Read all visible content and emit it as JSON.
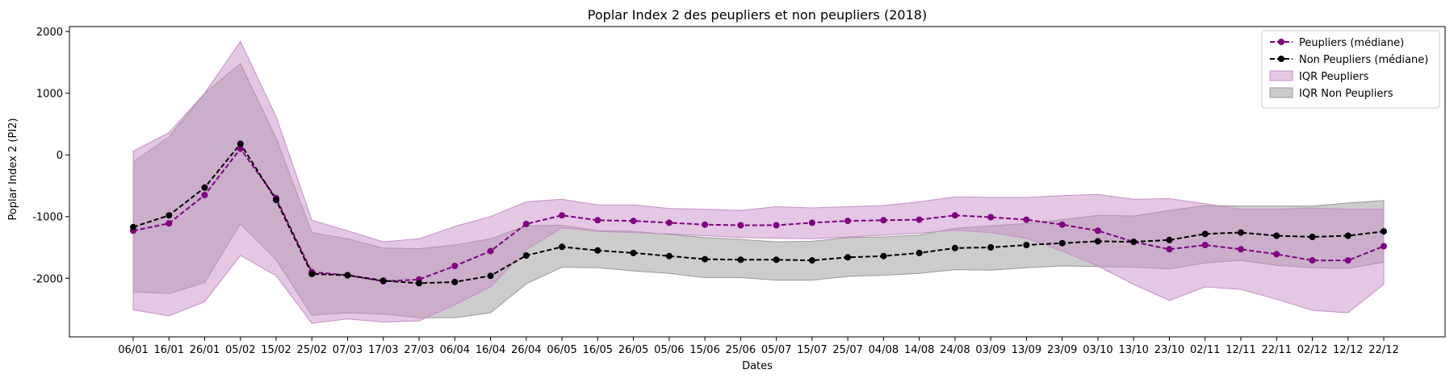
{
  "chart_data": {
    "type": "line",
    "title": "Poplar Index 2 des peupliers et non peupliers (2018)",
    "xlabel": "Dates",
    "ylabel": "Poplar Index 2 (PI2)",
    "ylim": [
      -2950,
      2080
    ],
    "yticks": [
      -2000,
      -1000,
      0,
      1000,
      2000
    ],
    "categories": [
      "06/01",
      "16/01",
      "26/01",
      "05/02",
      "15/02",
      "25/02",
      "07/03",
      "17/03",
      "27/03",
      "06/04",
      "16/04",
      "26/04",
      "06/05",
      "16/05",
      "26/05",
      "05/06",
      "15/06",
      "25/06",
      "05/07",
      "15/07",
      "25/07",
      "04/08",
      "14/08",
      "24/08",
      "03/09",
      "13/09",
      "23/09",
      "03/10",
      "13/10",
      "23/10",
      "02/11",
      "12/11",
      "22/11",
      "02/12",
      "12/12",
      "22/12"
    ],
    "legend_position": "top-right",
    "grid": false,
    "series": [
      {
        "name": "Peupliers (médiane)",
        "kind": "line",
        "color": "#800080",
        "values": [
          -1230,
          -1110,
          -650,
          100,
          -700,
          -1900,
          -1950,
          -2050,
          -2020,
          -1800,
          -1560,
          -1120,
          -980,
          -1060,
          -1070,
          -1100,
          -1130,
          -1140,
          -1140,
          -1100,
          -1070,
          -1060,
          -1050,
          -980,
          -1010,
          -1050,
          -1130,
          -1230,
          -1410,
          -1530,
          -1460,
          -1530,
          -1610,
          -1710,
          -1710,
          -1480
        ]
      },
      {
        "name": "Non Peupliers (médiane)",
        "kind": "line",
        "color": "#000000",
        "values": [
          -1170,
          -980,
          -530,
          180,
          -730,
          -1930,
          -1950,
          -2040,
          -2080,
          -2060,
          -1960,
          -1630,
          -1490,
          -1550,
          -1590,
          -1640,
          -1690,
          -1700,
          -1700,
          -1710,
          -1660,
          -1640,
          -1590,
          -1510,
          -1500,
          -1460,
          -1430,
          -1400,
          -1410,
          -1380,
          -1280,
          -1260,
          -1310,
          -1330,
          -1310,
          -1240
        ]
      },
      {
        "name": "IQR Peupliers",
        "kind": "band",
        "color": "#c78fc7",
        "lower": [
          -2510,
          -2610,
          -2380,
          -1630,
          -1960,
          -2730,
          -2660,
          -2710,
          -2690,
          -2430,
          -2140,
          -1540,
          -1180,
          -1240,
          -1260,
          -1280,
          -1310,
          -1340,
          -1350,
          -1360,
          -1330,
          -1300,
          -1270,
          -1220,
          -1260,
          -1350,
          -1560,
          -1800,
          -2100,
          -2360,
          -2140,
          -2180,
          -2340,
          -2520,
          -2560,
          -2100
        ],
        "upper": [
          60,
          360,
          1000,
          1840,
          620,
          -1060,
          -1230,
          -1410,
          -1360,
          -1160,
          -1000,
          -760,
          -720,
          -810,
          -810,
          -870,
          -880,
          -900,
          -840,
          -860,
          -840,
          -820,
          -760,
          -680,
          -690,
          -690,
          -660,
          -640,
          -720,
          -710,
          -790,
          -880,
          -880,
          -860,
          -880,
          -880
        ]
      },
      {
        "name": "IQR Non Peupliers",
        "kind": "band",
        "color": "#999999",
        "lower": [
          -2220,
          -2250,
          -2070,
          -1120,
          -1700,
          -2600,
          -2560,
          -2580,
          -2640,
          -2640,
          -2560,
          -2090,
          -1820,
          -1830,
          -1880,
          -1920,
          -1990,
          -1990,
          -2030,
          -2030,
          -1970,
          -1950,
          -1920,
          -1860,
          -1870,
          -1830,
          -1800,
          -1810,
          -1820,
          -1850,
          -1750,
          -1710,
          -1790,
          -1830,
          -1840,
          -1740
        ],
        "upper": [
          -110,
          290,
          1000,
          1480,
          270,
          -1260,
          -1360,
          -1510,
          -1520,
          -1460,
          -1360,
          -1150,
          -1140,
          -1230,
          -1240,
          -1290,
          -1340,
          -1370,
          -1410,
          -1400,
          -1340,
          -1330,
          -1300,
          -1190,
          -1150,
          -1110,
          -1050,
          -980,
          -990,
          -900,
          -820,
          -830,
          -830,
          -830,
          -780,
          -740
        ]
      }
    ]
  }
}
